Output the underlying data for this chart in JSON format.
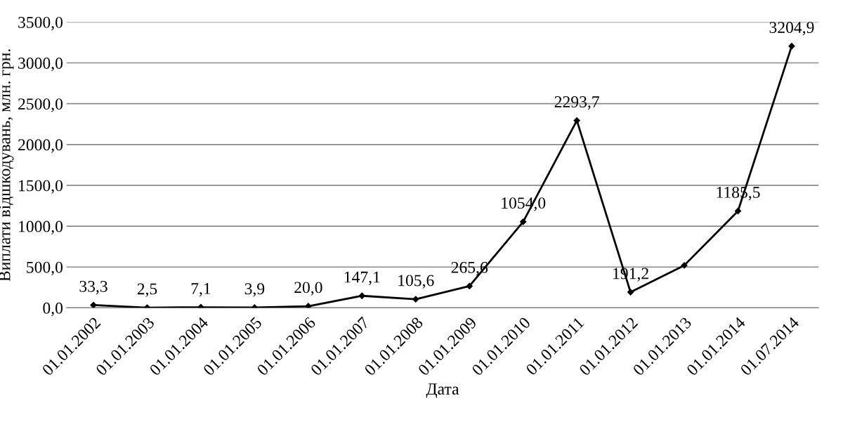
{
  "chart_data": {
    "type": "line",
    "xlabel": "Дата",
    "ylabel": "Виплати відшкодувань, млн. грн.",
    "categories": [
      "01.01.2002",
      "01.01.2003",
      "01.01.2004",
      "01.01.2005",
      "01.01.2006",
      "01.01.2007",
      "01.01.2008",
      "01.01.2009",
      "01.01.2010",
      "01.01.2011",
      "01.01.2012",
      "01.01.2013",
      "01.01.2014",
      "01.07.2014"
    ],
    "values": [
      33.3,
      2.5,
      7.1,
      3.9,
      20.0,
      147.1,
      105.6,
      265.6,
      1054.0,
      2293.7,
      191.2,
      520,
      1185.5,
      3204.9
    ],
    "value_labels": [
      "33,3",
      "2,5",
      "7,1",
      "3,9",
      "20,0",
      "147,1",
      "105,6",
      "265,6",
      "1054,0",
      "2293,7",
      "191,2",
      null,
      "1185,5",
      "3204,9"
    ],
    "color": "#000000",
    "marker": "diamond",
    "line_style": "solid",
    "grid": "y",
    "legend": false,
    "ylim": [
      0,
      3500
    ],
    "yticks": [
      {
        "value": 0,
        "label": "0,0"
      },
      {
        "value": 500,
        "label": "500,0"
      },
      {
        "value": 1000,
        "label": "1000,0"
      },
      {
        "value": 1500,
        "label": "1500,0"
      },
      {
        "value": 2000,
        "label": "2000,0"
      },
      {
        "value": 2500,
        "label": "2500,0"
      },
      {
        "value": 3000,
        "label": "3000,0"
      },
      {
        "value": 3500,
        "label": "3500,0"
      }
    ]
  }
}
